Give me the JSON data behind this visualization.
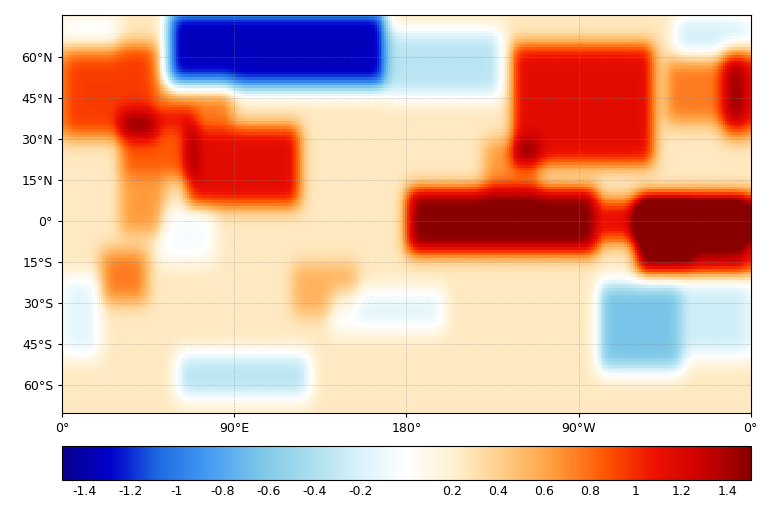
{
  "lon_ticks": [
    0,
    90,
    180,
    270,
    360
  ],
  "lon_labels": [
    "0°",
    "90°E",
    "180°",
    "90°W",
    "0°"
  ],
  "lat_ticks": [
    60,
    45,
    30,
    15,
    0,
    -15,
    -30,
    -45,
    -60
  ],
  "lat_labels": [
    "60°N",
    "45°N",
    "30°N",
    "15°N",
    "0°",
    "15°S",
    "30°S",
    "45°S",
    "60°S"
  ],
  "colorbar_ticks": [
    -1.4,
    -1.2,
    -1.0,
    -0.8,
    -0.6,
    -0.4,
    -0.2,
    0.2,
    0.4,
    0.6,
    0.8,
    1.0,
    1.2,
    1.4
  ],
  "colorbar_labels": [
    "-1.4",
    "-1.2",
    "-1",
    "-0.8",
    "-0.6",
    "-0.4",
    "-0.2",
    "0.2",
    "0.4",
    "0.6",
    "0.8",
    "1",
    "1.2",
    "1.4"
  ],
  "vmin": -1.5,
  "vmax": 1.5,
  "background_color": "#FFFFFF",
  "ocean_color": "#FFFFFF",
  "land_edge_color": "#000000",
  "grid_color": "#888888",
  "colorbar_label_fontsize": 9,
  "axis_label_fontsize": 9,
  "figsize": [
    7.74,
    5.16
  ],
  "dpi": 100,
  "extent_lon": [
    0,
    360
  ],
  "extent_lat": [
    -70,
    75
  ]
}
